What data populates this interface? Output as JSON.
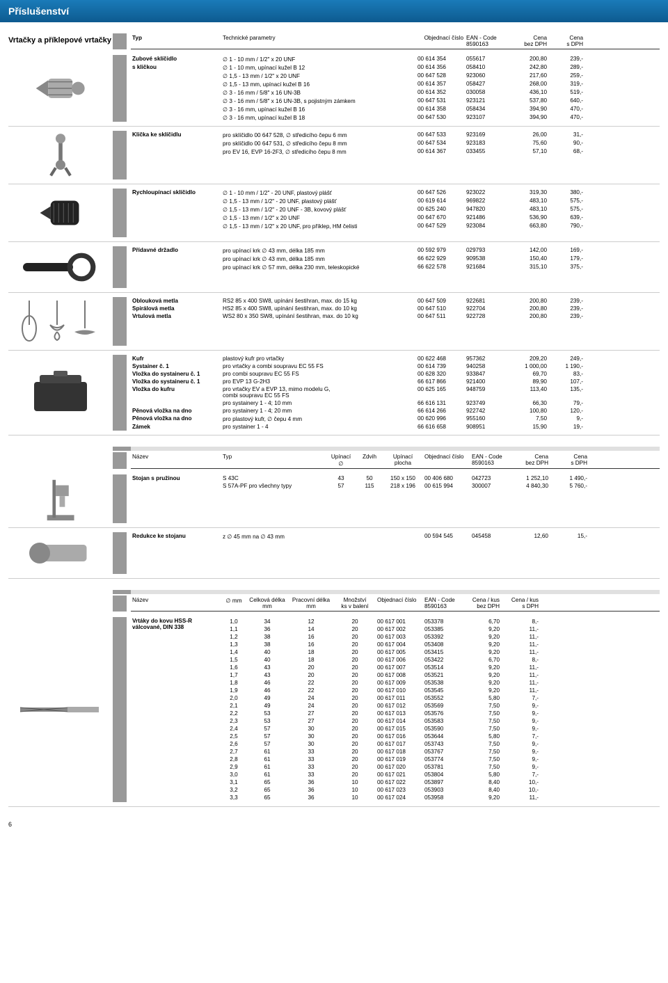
{
  "page": {
    "title": "Příslušenství",
    "page_number": "6"
  },
  "s1": {
    "title": "Vrtačky a příklepové vrtačky",
    "headers": [
      "Typ",
      "Technické parametry",
      "Objednací číslo",
      "EAN - Code\n8590163",
      "Cena\nbez DPH",
      "Cena\ns DPH"
    ],
    "groups": [
      {
        "label": "Zubové sklíčidlo\ns kličkou",
        "icon": "chuck",
        "rows": [
          [
            "∅ 1   - 10 mm / 1/2\" x 20 UNF",
            "00 614 354",
            "055617",
            "200,80",
            "239,-"
          ],
          [
            "∅ 1   - 10 mm, upínací kužel B 12",
            "00 614 356",
            "058410",
            "242,80",
            "289,-"
          ],
          [
            "∅ 1,5 - 13 mm / 1/2\" x 20 UNF",
            "00 647 528",
            "923060",
            "217,60",
            "259,-"
          ],
          [
            "∅ 1,5 - 13 mm, upínací kužel B 16",
            "00 614 357",
            "058427",
            "268,00",
            "319,-"
          ],
          [
            "∅ 3   - 16 mm / 5/8\" x 16 UN-3B",
            "00 614 352",
            "030058",
            "436,10",
            "519,-"
          ],
          [
            "∅ 3   - 16 mm / 5/8\" x 16 UN-3B, s pojistným zámkem",
            "00 647 531",
            "923121",
            "537,80",
            "640,-"
          ],
          [
            "∅ 3   - 16 mm, upínací kužel B 16",
            "00 614 358",
            "058434",
            "394,90",
            "470,-"
          ],
          [
            "∅ 3   - 16 mm, upínací kužel B 18",
            "00 647 530",
            "923107",
            "394,90",
            "470,-"
          ]
        ]
      },
      {
        "label": "Klička ke sklíčidlu",
        "icon": "key",
        "rows": [
          [
            "pro sklíčidlo 00 647 528, ∅ středicího čepu 6 mm",
            "00 647 533",
            "923169",
            "26,00",
            "31,-"
          ],
          [
            "pro sklíčidlo 00 647 531, ∅ středicího čepu 8 mm",
            "00 647 534",
            "923183",
            "75,60",
            "90,-"
          ],
          [
            "pro EV 16, EVP 16-2F3, ∅ středicího čepu 8 mm",
            "00 614 367",
            "033455",
            "57,10",
            "68,-"
          ]
        ]
      },
      {
        "label": "Rychloupínací sklíčidlo",
        "icon": "keyless",
        "rows": [
          [
            "∅ 1   - 10 mm / 1/2\" - 20 UNF, plastový plášť",
            "00 647 526",
            "923022",
            "319,30",
            "380,-"
          ],
          [
            "∅ 1,5 - 13 mm / 1/2\" - 20 UNF, plastový plášť",
            "00 619 614",
            "969822",
            "483,10",
            "575,-"
          ],
          [
            "∅ 1,5 - 13 mm / 1/2\" - 20 UNF - 3B, kovový plášť",
            "00 625 240",
            "947820",
            "483,10",
            "575,-"
          ],
          [
            "∅ 1,5 - 13 mm / 1/2\" x 20 UNF",
            "00 647 670",
            "921486",
            "536,90",
            "639,-"
          ],
          [
            "∅ 1,5 - 13 mm / 1/2\" x 20 UNF, pro příklep, HM čelisti",
            "00 647 529",
            "923084",
            "663,80",
            "790,-"
          ]
        ]
      },
      {
        "label": "Přídavné držadlo",
        "icon": "handle",
        "rows": [
          [
            "pro upínací krk ∅ 43 mm, délka 185 mm",
            "00 592 979",
            "029793",
            "142,00",
            "169,-"
          ],
          [
            "pro upínací krk ∅ 43 mm, délka 185 mm",
            "66 622 929",
            "909538",
            "150,40",
            "179,-"
          ],
          [
            "pro upínací krk ∅ 57 mm, délka 230 mm, teleskopické",
            "66 622 578",
            "921684",
            "315,10",
            "375,-"
          ]
        ]
      },
      {
        "label": "Oblouková metla\nSpirálová metla\nVrtulová metla",
        "icon": "mixer",
        "rows": [
          [
            "RS2  85 x 400 SW8, upínání šestihran, max. do 15 kg",
            "00 647 509",
            "922681",
            "200,80",
            "239,-"
          ],
          [
            "HS2  85 x 400 SW8, upínání šestihran, max. do 10 kg",
            "00 647 510",
            "922704",
            "200,80",
            "239,-"
          ],
          [
            "WS2 80 x 350 SW8, upínání šestihran, max. do 10 kg",
            "00 647 511",
            "922728",
            "200,80",
            "239,-"
          ]
        ]
      },
      {
        "label": "Kufr\nSystainer č. 1\nVložka do systaineru č. 1\nVložka do systaineru č. 1\nVložka do kufru\n\nPěnová vložka na dno\nPěnová vložka na dno\nZámek\nZámek",
        "icon": "case",
        "rows": [
          [
            "plastový kufr pro vrtačky",
            "00 622 468",
            "957362",
            "209,20",
            "249,-"
          ],
          [
            "pro vrtačky a combi soupravu EC 55 FS",
            "00 614 739",
            "940258",
            "1 000,00",
            "1 190,-"
          ],
          [
            "pro combi soupravu EC 55 FS",
            "00 628 320",
            "933847",
            "69,70",
            "83,-"
          ],
          [
            "pro EVP 13 G-2H3",
            "66 617 866",
            "921400",
            "89,90",
            "107,-"
          ],
          [
            "pro vrtačky EV a EVP 13, mimo modelu G,\ncombi soupravu EC 55 FS",
            "00 625 165",
            "948759",
            "113,40",
            "135,-"
          ],
          [
            "pro systainery 1 - 4; 10 mm",
            "66 616 131",
            "923749",
            "66,30",
            "79,-"
          ],
          [
            "pro systainery 1 - 4; 20 mm",
            "66 614 266",
            "922742",
            "100,80",
            "120,-"
          ],
          [
            "pro plastový kufr, ∅ čepu 4 mm",
            "00 620 996",
            "955160",
            "7,50",
            "9,-"
          ],
          [
            "pro systainer 1 - 4",
            "66 616 658",
            "908951",
            "15,90",
            "19,-"
          ]
        ]
      }
    ]
  },
  "s2": {
    "headers": [
      "Název",
      "Typ",
      "Upínací\n∅",
      "Zdvih",
      "Upínací plocha",
      "Objednací číslo",
      "EAN - Code\n8590163",
      "Cena\nbez DPH",
      "Cena\ns DPH"
    ],
    "groups": [
      {
        "label": "Stojan s pružinou",
        "icon": "stand",
        "rows": [
          [
            "S 43C",
            "43",
            "50",
            "150 x 150",
            "00 406 680",
            "042723",
            "1 252,10",
            "1 490,-"
          ],
          [
            "S 57A-PF pro všechny typy",
            "57",
            "115",
            "218 x 196",
            "00 615 994",
            "300007",
            "4 840,30",
            "5 760,-"
          ]
        ]
      },
      {
        "label": "Redukce ke stojanu",
        "icon": "reducer",
        "rows": [
          [
            "z ∅ 45 mm na ∅ 43 mm",
            "",
            "",
            "",
            "00 594 545",
            "045458",
            "12,60",
            "15,-"
          ]
        ]
      }
    ]
  },
  "s3": {
    "headers": [
      "Název",
      "∅ mm",
      "Celková délka\nmm",
      "Pracovní délka\nmm",
      "Množství\nks v balení",
      "Objednací číslo",
      "EAN - Code\n8590163",
      "Cena / kus\nbez DPH",
      "Cena / kus\ns DPH"
    ],
    "label": "Vrtáky do kovu HSS-R\nválcované, DIN 338",
    "icon": "drill",
    "rows": [
      [
        "1,0",
        "34",
        "12",
        "20",
        "00 617 001",
        "053378",
        "6,70",
        "8,-"
      ],
      [
        "1,1",
        "36",
        "14",
        "20",
        "00 617 002",
        "053385",
        "9,20",
        "11,-"
      ],
      [
        "1,2",
        "38",
        "16",
        "20",
        "00 617 003",
        "053392",
        "9,20",
        "11,-"
      ],
      [
        "1,3",
        "38",
        "16",
        "20",
        "00 617 004",
        "053408",
        "9,20",
        "11,-"
      ],
      [
        "1,4",
        "40",
        "18",
        "20",
        "00 617 005",
        "053415",
        "9,20",
        "11,-"
      ],
      [
        "1,5",
        "40",
        "18",
        "20",
        "00 617 006",
        "053422",
        "6,70",
        "8,-"
      ],
      [
        "1,6",
        "43",
        "20",
        "20",
        "00 617 007",
        "053514",
        "9,20",
        "11,-"
      ],
      [
        "1,7",
        "43",
        "20",
        "20",
        "00 617 008",
        "053521",
        "9,20",
        "11,-"
      ],
      [
        "1,8",
        "46",
        "22",
        "20",
        "00 617 009",
        "053538",
        "9,20",
        "11,-"
      ],
      [
        "1,9",
        "46",
        "22",
        "20",
        "00 617 010",
        "053545",
        "9,20",
        "11,-"
      ],
      [
        "2,0",
        "49",
        "24",
        "20",
        "00 617 011",
        "053552",
        "5,80",
        "7,-"
      ],
      [
        "2,1",
        "49",
        "24",
        "20",
        "00 617 012",
        "053569",
        "7,50",
        "9,-"
      ],
      [
        "2,2",
        "53",
        "27",
        "20",
        "00 617 013",
        "053576",
        "7,50",
        "9,-"
      ],
      [
        "2,3",
        "53",
        "27",
        "20",
        "00 617 014",
        "053583",
        "7,50",
        "9,-"
      ],
      [
        "2,4",
        "57",
        "30",
        "20",
        "00 617 015",
        "053590",
        "7,50",
        "9,-"
      ],
      [
        "2,5",
        "57",
        "30",
        "20",
        "00 617 016",
        "053644",
        "5,80",
        "7,-"
      ],
      [
        "2,6",
        "57",
        "30",
        "20",
        "00 617 017",
        "053743",
        "7,50",
        "9,-"
      ],
      [
        "2,7",
        "61",
        "33",
        "20",
        "00 617 018",
        "053767",
        "7,50",
        "9,-"
      ],
      [
        "2,8",
        "61",
        "33",
        "20",
        "00 617 019",
        "053774",
        "7,50",
        "9,-"
      ],
      [
        "2,9",
        "61",
        "33",
        "20",
        "00 617 020",
        "053781",
        "7,50",
        "9,-"
      ],
      [
        "3,0",
        "61",
        "33",
        "20",
        "00 617 021",
        "053804",
        "5,80",
        "7,-"
      ],
      [
        "3,1",
        "65",
        "36",
        "10",
        "00 617 022",
        "053897",
        "8,40",
        "10,-"
      ],
      [
        "3,2",
        "65",
        "36",
        "10",
        "00 617 023",
        "053903",
        "8,40",
        "10,-"
      ],
      [
        "3,3",
        "65",
        "36",
        "10",
        "00 617 024",
        "053958",
        "9,20",
        "11,-"
      ]
    ]
  }
}
